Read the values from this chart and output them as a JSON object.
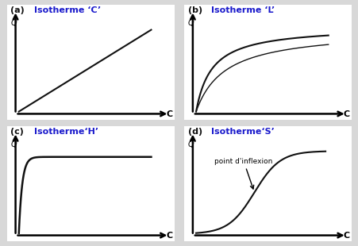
{
  "panels": [
    {
      "label": "(a)",
      "title": "Isotherme ‘C’",
      "type": "C"
    },
    {
      "label": "(b)",
      "title": "Isotherme ‘L’",
      "type": "L"
    },
    {
      "label": "(c)",
      "title": "Isotherme‘H’",
      "type": "H"
    },
    {
      "label": "(d)",
      "title": "Isotherme‘S’",
      "type": "S"
    }
  ],
  "background_color": "#d8d8d8",
  "curve_color": "#111111",
  "title_color": "#1a1acc",
  "label_color": "#111111",
  "panel_bg": "#ffffff",
  "border_color": "#555555"
}
